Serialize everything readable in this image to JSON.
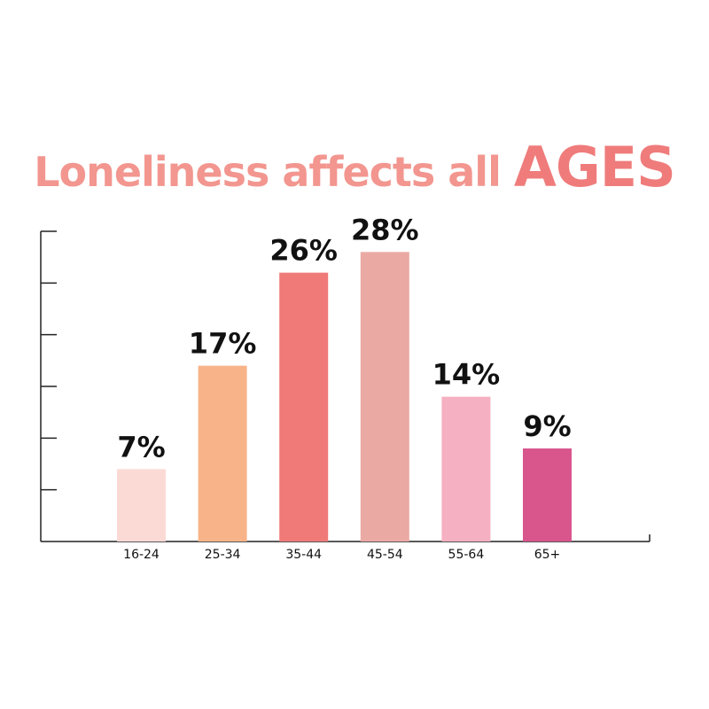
{
  "title": {
    "main": "Loneliness affects all ",
    "emphasis": "AGES",
    "main_color": "#f2968f",
    "emphasis_color": "#ef7c7b"
  },
  "chart_data": {
    "type": "bar",
    "title": "Loneliness affects all AGES",
    "categories": [
      "16-24",
      "25-34",
      "35-44",
      "45-54",
      "55-64",
      "65+"
    ],
    "values": [
      7,
      17,
      26,
      28,
      14,
      9
    ],
    "labels": [
      "7%",
      "17%",
      "26%",
      "28%",
      "14%",
      "9%"
    ],
    "colors": [
      "#fbdad6",
      "#f8b488",
      "#ef7a78",
      "#eba9a3",
      "#f5b0c1",
      "#d9568d"
    ],
    "ylim": [
      0,
      30
    ],
    "y_ticks": [
      0,
      5,
      10,
      15,
      20,
      25,
      30
    ],
    "y_tick_labels_visible": false,
    "xlabel": "",
    "ylabel": "",
    "grid": false,
    "legend": "none",
    "axis_color": "#222222"
  }
}
